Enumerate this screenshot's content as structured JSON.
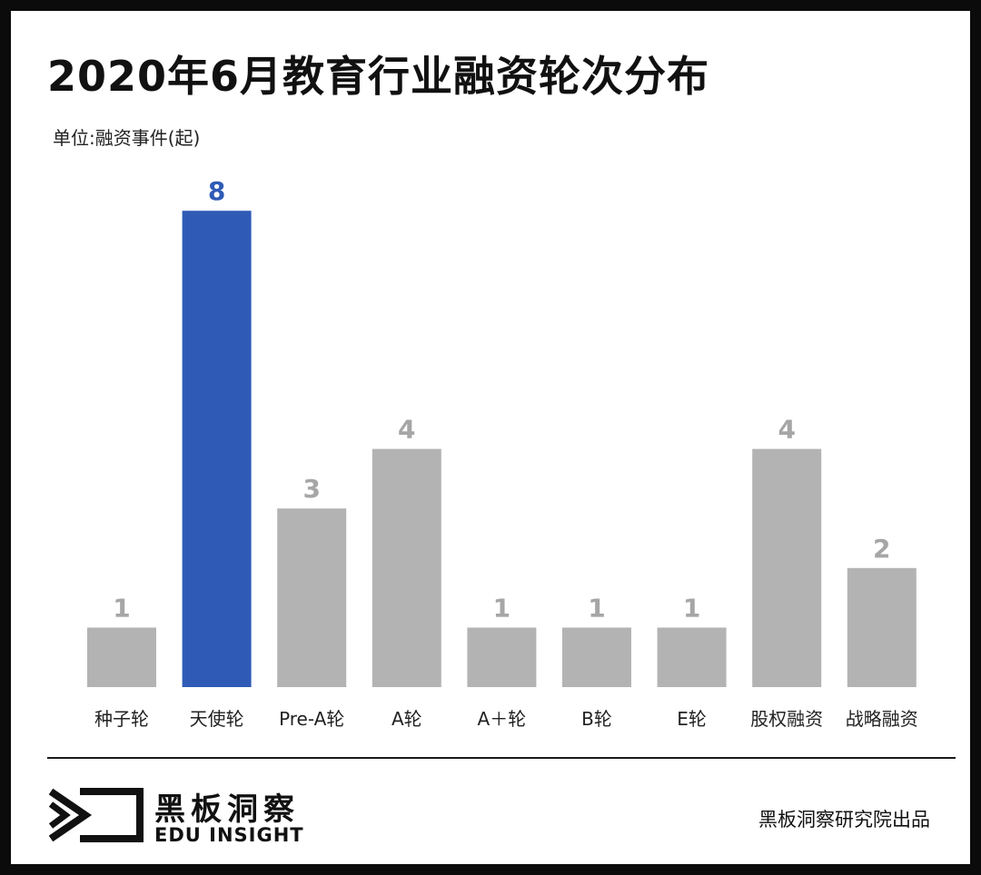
{
  "header": {
    "title": "2020年6月教育行业融资轮次分布",
    "unit": "单位:融资事件(起)"
  },
  "chart_data": {
    "type": "bar",
    "title": "2020年6月教育行业融资轮次分布",
    "ylabel": "单位:融资事件(起)",
    "xlabel": "",
    "categories": [
      "种子轮",
      "天使轮",
      "Pre-A轮",
      "A轮",
      "A＋轮",
      "B轮",
      "E轮",
      "股权融资",
      "战略融资"
    ],
    "values": [
      1,
      8,
      3,
      4,
      1,
      1,
      1,
      4,
      2
    ],
    "data_labels": [
      "1",
      "8",
      "3",
      "4",
      "1",
      "1",
      "1",
      "4",
      "2"
    ],
    "ylim": [
      0,
      8
    ],
    "grid": false,
    "legend": "none",
    "highlight_index": 1,
    "colors": {
      "default_bar": "#b3b3b3",
      "highlight_bar": "#2f5bb7",
      "default_label": "#a6a6a6",
      "highlight_label": "#2f5bb7",
      "axis_label": "#222222"
    }
  },
  "footer": {
    "brand_cn": "黑板洞察",
    "brand_en": "EDU INSIGHT",
    "credit": "黑板洞察研究院出品",
    "logo_icon": "eye-arrow-logo-icon"
  }
}
